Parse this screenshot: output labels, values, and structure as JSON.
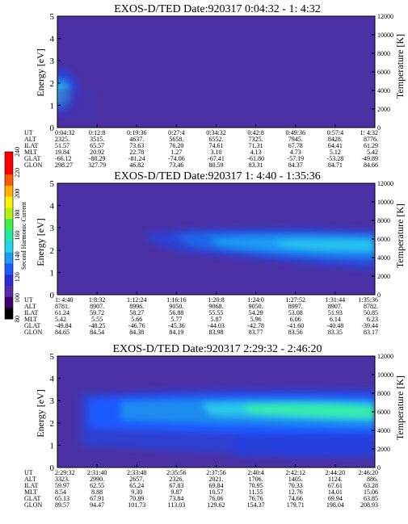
{
  "chart_data": [
    {
      "type": "heatmap",
      "title": "EXOS-D/TED   Date:920317   0:04:32 - 1: 4:32",
      "ylabel": "Energy [eV]",
      "ylabel_right": "Temperature [K]",
      "ylim": [
        0,
        5
      ],
      "ylim_right": [
        0,
        12000
      ],
      "yticks": [
        "0",
        "1",
        "2",
        "3",
        "4",
        "5"
      ],
      "yticks_right": [
        "0",
        "2000",
        "4000",
        "6000",
        "8000",
        "10000",
        "12000"
      ],
      "rows": [
        {
          "label": "UT",
          "values": [
            "0:04:32",
            "0:12:8",
            "0:19:36",
            "0:27:4",
            "0:34:32",
            "0:42:8",
            "0:49:36",
            "0:57:4",
            "1: 4:32"
          ]
        },
        {
          "label": "ALT",
          "values": [
            "2325.",
            "3515.",
            "4637.",
            "5658.",
            "6552.",
            "7325.",
            "7945.",
            "8428.",
            "8776."
          ]
        },
        {
          "label": "ILAT",
          "values": [
            "51.57",
            "65.57",
            "73.63",
            "76.20",
            "74.61",
            "71.31",
            "67.78",
            "64.41",
            "61.29"
          ]
        },
        {
          "label": "MLT",
          "values": [
            "19.84",
            "20.92",
            "22.78",
            "1.27",
            "3.10",
            "4.13",
            "4.73",
            "5.12",
            "5.42"
          ]
        },
        {
          "label": "GLAT",
          "values": [
            "-66.12",
            "-80.29",
            "-81.24",
            "-74.06",
            "-67.41",
            "-61.80",
            "-57.19",
            "-53.28",
            "-49.89"
          ]
        },
        {
          "label": "GLON",
          "values": [
            "298.27",
            "327.79",
            "46.82",
            "73.46",
            "80.59",
            "83.31",
            "84.37",
            "84.71",
            "84.66"
          ]
        }
      ]
    },
    {
      "type": "heatmap",
      "title": "EXOS-D/TED   Date:920317   1: 4:40 - 1:35:36",
      "ylabel": "Energy [eV]",
      "ylabel_right": "Temperature [K]",
      "ylim": [
        0,
        5
      ],
      "ylim_right": [
        0,
        12000
      ],
      "yticks": [
        "0",
        "1",
        "2",
        "3",
        "4",
        "5"
      ],
      "yticks_right": [
        "0",
        "2000",
        "4000",
        "6000",
        "8000",
        "10000",
        "12000"
      ],
      "rows": [
        {
          "label": "UT",
          "values": [
            "1: 4:40",
            "1:8:32",
            "1:12:24",
            "1:16:16",
            "1:20:8",
            "1:24:0",
            "1:27:52",
            "1:31:44",
            "1:35:36"
          ]
        },
        {
          "label": "ALT",
          "values": [
            "8781.",
            "8907.",
            "8996.",
            "9050.",
            "9068.",
            "9050.",
            "8997.",
            "8907.",
            "8782."
          ]
        },
        {
          "label": "ILAT",
          "values": [
            "61.24",
            "59.72",
            "58.27",
            "56.88",
            "55.55",
            "54.29",
            "53.08",
            "51.93",
            "50.85"
          ]
        },
        {
          "label": "MLT",
          "values": [
            "5.42",
            "5.55",
            "5.66",
            "5.77",
            "5.87",
            "5.96",
            "6.06",
            "6.14",
            "6.23"
          ]
        },
        {
          "label": "GLAT",
          "values": [
            "-49.84",
            "-48.25",
            "-46.76",
            "-45.36",
            "-44.03",
            "-42.78",
            "-41.60",
            "-40.48",
            "-39.44"
          ]
        },
        {
          "label": "GLON",
          "values": [
            "84.65",
            "84.54",
            "84.38",
            "84.19",
            "83.98",
            "83.77",
            "83.56",
            "83.35",
            "83.17"
          ]
        }
      ]
    },
    {
      "type": "heatmap",
      "title": "EXOS-D/TED   Date:920317   2:29:32 - 2:46:20",
      "ylabel": "Energy [eV]",
      "ylabel_right": "Temperature [K]",
      "ylim": [
        0,
        5
      ],
      "ylim_right": [
        0,
        12000
      ],
      "yticks": [
        "0",
        "1",
        "2",
        "3",
        "4",
        "5"
      ],
      "yticks_right": [
        "0",
        "2000",
        "4000",
        "6000",
        "8000",
        "10000",
        "12000"
      ],
      "rows": [
        {
          "label": "UT",
          "values": [
            "2:29:32",
            "2:31:40",
            "2:33:48",
            "2:35:56",
            "2:37:56",
            "2:40:4",
            "2:42:12",
            "2:44:20",
            "2:46:20"
          ]
        },
        {
          "label": "ALT",
          "values": [
            "3323.",
            "2990.",
            "2657.",
            "2326.",
            "2021.",
            "1706.",
            "1405.",
            "1124.",
            "886."
          ]
        },
        {
          "label": "ILAT",
          "values": [
            "59.97",
            "62.55",
            "65.24",
            "67.83",
            "69.84",
            "70.95",
            "70.33",
            "67.61",
            "63.28"
          ]
        },
        {
          "label": "MLT",
          "values": [
            "8.54",
            "8.88",
            "9.30",
            "9.87",
            "10.57",
            "11.55",
            "12.76",
            "14.01",
            "15.06"
          ]
        },
        {
          "label": "GLAT",
          "values": [
            "65.13",
            "67.91",
            "70.89",
            "73.84",
            "76.06",
            "76.76",
            "74.66",
            "69.94",
            "63.85"
          ]
        },
        {
          "label": "GLON",
          "values": [
            "89.57",
            "94.47",
            "101.73",
            "113.03",
            "129.62",
            "154.37",
            "179.71",
            "198.04",
            "208.93"
          ]
        }
      ]
    }
  ],
  "colorbar": {
    "label": "Second Harmonic Current",
    "ticks": [
      "80",
      "100",
      "120",
      "140",
      "160",
      "180",
      "200",
      "220",
      "240"
    ],
    "colors": [
      "#000000",
      "#3c0070",
      "#5a2aa8",
      "#2b2bd8",
      "#1e5aff",
      "#1f9cf5",
      "#24d4e8",
      "#20e8a0",
      "#3cf04a",
      "#b4f016",
      "#fff000",
      "#ffb000",
      "#ff5a00",
      "#ff0000",
      "#ff0000"
    ]
  },
  "colors": {
    "background": "#4a32a6",
    "low": "#3c2ea8",
    "mid": "#2f3fd2",
    "high": "#1e7af0",
    "peak": "#29c8ea",
    "hot": "#36eea8"
  }
}
